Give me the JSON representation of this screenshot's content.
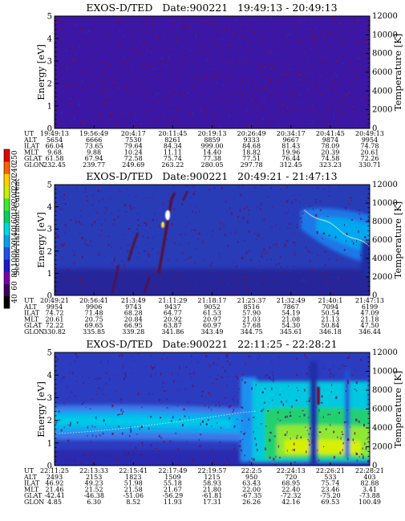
{
  "colorbar": {
    "label": "Second Harmonic Current",
    "ticks": [
      "40",
      "60",
      "80",
      "100",
      "120",
      "140",
      "160",
      "180",
      "200",
      "220",
      "240",
      "250"
    ],
    "colors": [
      "#000000",
      "#3a0060",
      "#7a00a8",
      "#1a1ac8",
      "#2050e8",
      "#00a0f0",
      "#00d8e0",
      "#00d060",
      "#40e830",
      "#c8f000",
      "#ffd000",
      "#ff6000",
      "#e00000"
    ]
  },
  "chart_data": [
    {
      "type": "heatmap",
      "title": "EXOS-D/TED   Date:900221   19:49:13 - 20:49:13",
      "ylabel": "Energy [eV]",
      "y2label": "Temperature [K]",
      "ylim": [
        0,
        5
      ],
      "y2lim": [
        0,
        12000
      ],
      "yticks": [
        "0",
        "1",
        "2",
        "3",
        "4",
        "5"
      ],
      "y2ticks": [
        "0",
        "2000",
        "4000",
        "6000",
        "8000",
        "10000",
        "12000"
      ],
      "rows": {
        "UT": [
          "19:49:13",
          "19:56:49",
          "20:4:17",
          "20:11:45",
          "20:19:13",
          "20:26:49",
          "20:34:17",
          "20:41:45",
          "20:49:13"
        ],
        "ALT": [
          "5654",
          "6666",
          "7530",
          "8261",
          "8859",
          "9333",
          "9667",
          "9874",
          "9954"
        ],
        "ILAT": [
          "66.04",
          "73.65",
          "79.64",
          "84.34",
          "999.00",
          "84.68",
          "81.43",
          "78.09",
          "74.78"
        ],
        "MLT": [
          "9.68",
          "9.88",
          "10.24",
          "11.11",
          "14.40",
          "18.82",
          "19.96",
          "20.39",
          "20.61"
        ],
        "GLAT": [
          "61.58",
          "67.94",
          "72.58",
          "75.74",
          "77.38",
          "77.51",
          "76.44",
          "74.58",
          "72.26"
        ],
        "GLON": [
          "232.45",
          "239.77",
          "249.69",
          "263.22",
          "280.05",
          "297.78",
          "312.45",
          "323.23",
          "330.71"
        ]
      }
    },
    {
      "type": "heatmap",
      "title": "EXOS-D/TED   Date:900221   20:49:21 - 21:47:13",
      "ylabel": "Energy [eV]",
      "y2label": "Temperature [K]",
      "ylim": [
        0,
        5
      ],
      "y2lim": [
        0,
        12000
      ],
      "yticks": [
        "0",
        "1",
        "2",
        "3",
        "4",
        "5"
      ],
      "y2ticks": [
        "0",
        "2000",
        "4000",
        "6000",
        "8000",
        "10000",
        "12000"
      ],
      "rows": {
        "UT": [
          "20:49:21",
          "20:56:41",
          "21:3:49",
          "21:11:29",
          "21:18:17",
          "21:25:37",
          "21:32:49",
          "21:40:1",
          "21:47:13"
        ],
        "ALT": [
          "9954",
          "9906",
          "9743",
          "9437",
          "9052",
          "8516",
          "7867",
          "7094",
          "6199"
        ],
        "ILAT": [
          "74.72",
          "71.48",
          "68.28",
          "64.77",
          "61.53",
          "57.90",
          "54.19",
          "50.54",
          "47.09"
        ],
        "MLT": [
          "20.61",
          "20.75",
          "20.84",
          "20.92",
          "20.97",
          "21.03",
          "21.08",
          "21.13",
          "21.18"
        ],
        "GLAT": [
          "72.22",
          "69.65",
          "66.95",
          "63.87",
          "60.97",
          "57.68",
          "54.30",
          "50.84",
          "47.50"
        ],
        "GLON": [
          "330.82",
          "335.85",
          "339.28",
          "341.86",
          "343.49",
          "344.75",
          "345.61",
          "346.18",
          "346.44"
        ]
      }
    },
    {
      "type": "heatmap",
      "title": "EXOS-D/TED   Date:900221   22:11:25 - 22:28:21",
      "ylabel": "Energy [eV]",
      "y2label": "Temperature [K]",
      "ylim": [
        0,
        5
      ],
      "y2lim": [
        0,
        12000
      ],
      "yticks": [
        "0",
        "1",
        "2",
        "3",
        "4",
        "5"
      ],
      "y2ticks": [
        "0",
        "2000",
        "4000",
        "6000",
        "8000",
        "10000",
        "12000"
      ],
      "rows": {
        "UT": [
          "22:11:25",
          "22:13:33",
          "22:15:41",
          "22:17:49",
          "22:19:57",
          "22:2:5",
          "22:24:13",
          "22:26:21",
          "22:28:21"
        ],
        "ALT": [
          "2493",
          "2153",
          "1823",
          "1509",
          "1215",
          "950",
          "720",
          "533",
          "403"
        ],
        "ILAT": [
          "46.92",
          "49.23",
          "51.98",
          "55.18",
          "58.93",
          "63.43",
          "68.95",
          "75.74",
          "82.88"
        ],
        "MLT": [
          "21.46",
          "21.52",
          "21.58",
          "21.67",
          "21.80",
          "22.00",
          "22.40",
          "23.46",
          "3.41"
        ],
        "GLAT": [
          "-42.41",
          "-46.38",
          "-51.06",
          "-56.29",
          "-61.81",
          "-67.35",
          "-72.32",
          "-75.20",
          "-73.88"
        ],
        "GLON": [
          "4.85",
          "6.30",
          "8.52",
          "11.93",
          "17.31",
          "26.26",
          "42.16",
          "69.53",
          "100.49"
        ]
      }
    }
  ]
}
